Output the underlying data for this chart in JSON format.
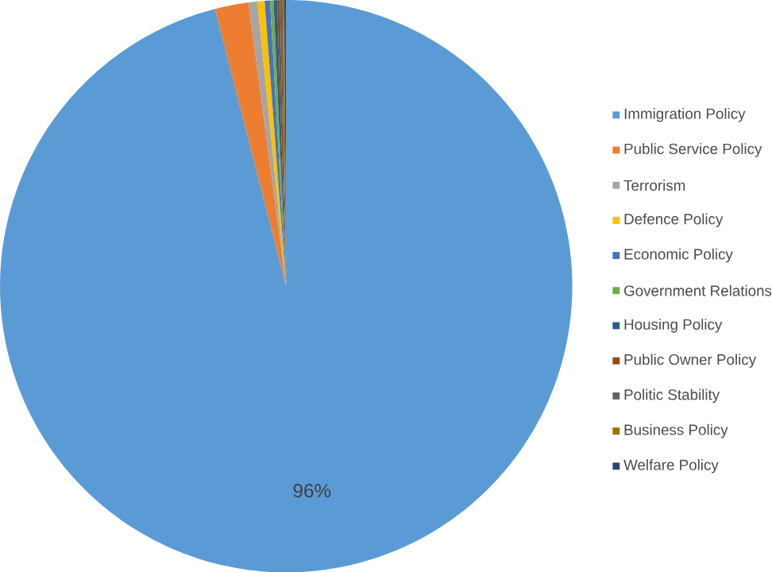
{
  "chart_data": {
    "type": "pie",
    "categories": [
      "Immigration Policy",
      "Public Service Policy",
      "Terrorism",
      "Defence Policy",
      "Economic Policy",
      "Government Relations",
      "Housing Policy",
      "Public Owner Policy",
      "Politic Stability",
      "Business Policy",
      "Welfare Policy"
    ],
    "values": [
      96,
      1.9,
      0.5,
      0.4,
      0.3,
      0.2,
      0.2,
      0.15,
      0.15,
      0.1,
      0.1
    ],
    "colors": [
      "#5b9bd5",
      "#ed7d31",
      "#a5a5a5",
      "#ffc000",
      "#4472c4",
      "#70ad47",
      "#255e91",
      "#9e480e",
      "#636363",
      "#997300",
      "#264478"
    ],
    "value_labels": [
      "96%",
      null,
      null,
      null,
      null,
      null,
      null,
      null,
      null,
      null,
      null
    ],
    "legend": "right"
  }
}
